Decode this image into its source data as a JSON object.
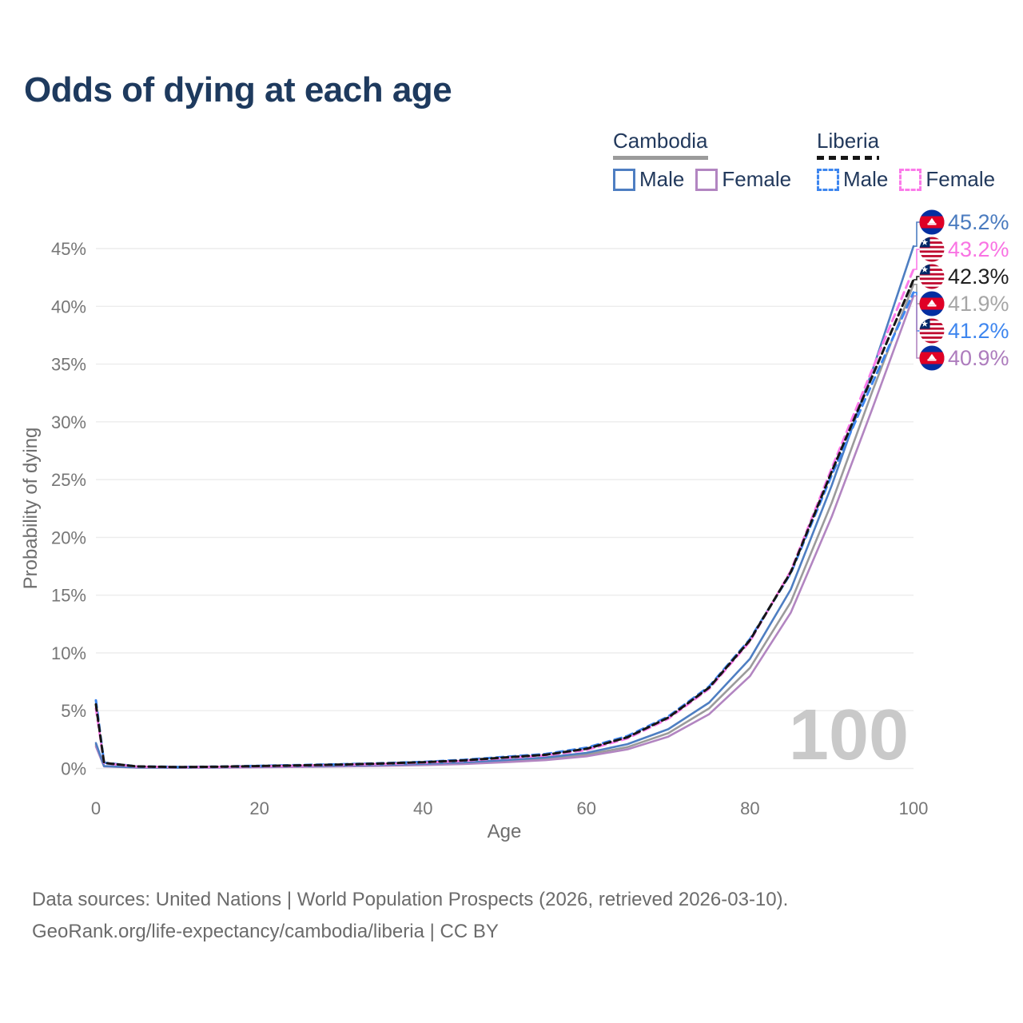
{
  "title": "Odds of dying at each age",
  "watermark": "100",
  "legend": {
    "groups": [
      {
        "country": "Cambodia",
        "underline_series": "cambodia-both",
        "items": [
          {
            "label": "Male",
            "series": "cambodia-male"
          },
          {
            "label": "Female",
            "series": "cambodia-female"
          }
        ]
      },
      {
        "country": "Liberia",
        "underline_series": "liberia-both",
        "items": [
          {
            "label": "Male",
            "series": "liberia-male"
          },
          {
            "label": "Female",
            "series": "liberia-female"
          }
        ]
      }
    ]
  },
  "footer": {
    "line1": "Data sources: United Nations | World Population Prospects (2026, retrieved 2026-03-10).",
    "line2": "GeoRank.org/life-expectancy/cambodia/liberia | CC BY"
  },
  "chart_data": {
    "type": "line",
    "title": "Odds of dying at each age",
    "xlabel": "Age",
    "ylabel": "Probability of dying",
    "x_ticks": [
      0,
      20,
      40,
      60,
      80,
      100
    ],
    "y_ticks_percent": [
      0,
      5,
      10,
      15,
      20,
      25,
      30,
      35,
      40,
      45
    ],
    "xlim": [
      0,
      100
    ],
    "ylim_percent": [
      0,
      47
    ],
    "grid": "horizontal",
    "legend_position": "top-right",
    "x": [
      0,
      1,
      5,
      10,
      15,
      20,
      25,
      30,
      35,
      40,
      45,
      50,
      55,
      60,
      65,
      70,
      75,
      80,
      85,
      90,
      95,
      100
    ],
    "series": [
      {
        "key": "cambodia-both",
        "country": "Cambodia",
        "sex": "Both sexes",
        "line_style": "solid",
        "color": "#9b9b9b",
        "label_color": "#a6a6a6",
        "flag": "cambodia",
        "end_label": "41.9%",
        "values": [
          2.05,
          0.19,
          0.08,
          0.065,
          0.09,
          0.13,
          0.17,
          0.21,
          0.27,
          0.35,
          0.46,
          0.63,
          0.82,
          1.2,
          1.85,
          3.05,
          5.2,
          8.7,
          14.4,
          23.0,
          32.7,
          41.9
        ]
      },
      {
        "key": "cambodia-female",
        "country": "Cambodia",
        "sex": "Female",
        "line_style": "solid",
        "color": "#b285c1",
        "label_color": "#ad7cbd",
        "flag": "cambodia",
        "end_label": "40.9%",
        "values": [
          1.9,
          0.17,
          0.07,
          0.06,
          0.07,
          0.1,
          0.13,
          0.17,
          0.22,
          0.29,
          0.39,
          0.54,
          0.72,
          1.05,
          1.65,
          2.75,
          4.7,
          8.0,
          13.5,
          21.8,
          31.2,
          40.9
        ]
      },
      {
        "key": "cambodia-male",
        "country": "Cambodia",
        "sex": "Male",
        "line_style": "solid",
        "color": "#4e7ec2",
        "label_color": "#4a7bbf",
        "flag": "cambodia",
        "end_label": "45.2%",
        "values": [
          2.2,
          0.2,
          0.09,
          0.07,
          0.1,
          0.16,
          0.2,
          0.25,
          0.31,
          0.4,
          0.53,
          0.72,
          0.95,
          1.35,
          2.1,
          3.4,
          5.7,
          9.5,
          15.5,
          24.5,
          34.5,
          45.2
        ]
      },
      {
        "key": "liberia-male",
        "country": "Liberia",
        "sex": "Male",
        "line_style": "dashed",
        "color": "#3e86ef",
        "label_color": "#3e86ef",
        "flag": "liberia",
        "end_label": "41.2%",
        "values": [
          5.9,
          0.5,
          0.18,
          0.13,
          0.16,
          0.23,
          0.3,
          0.37,
          0.46,
          0.57,
          0.75,
          1.0,
          1.25,
          1.8,
          2.8,
          4.5,
          7.1,
          11.2,
          16.9,
          25.4,
          33.4,
          41.2
        ]
      },
      {
        "key": "liberia-female",
        "country": "Liberia",
        "sex": "Female",
        "line_style": "dashed",
        "color": "#fb7ae9",
        "label_color": "#f973e3",
        "flag": "liberia",
        "end_label": "43.2%",
        "values": [
          5.2,
          0.45,
          0.16,
          0.11,
          0.13,
          0.18,
          0.24,
          0.31,
          0.39,
          0.5,
          0.66,
          0.9,
          1.12,
          1.6,
          2.6,
          4.3,
          6.9,
          11.0,
          17.1,
          26.0,
          34.6,
          43.2
        ]
      },
      {
        "key": "liberia-both",
        "country": "Liberia",
        "sex": "Both sexes",
        "line_style": "dashed",
        "color": "#161616",
        "label_color": "#1f1f1f",
        "flag": "liberia",
        "end_label": "42.3%",
        "values": [
          5.55,
          0.48,
          0.17,
          0.12,
          0.15,
          0.21,
          0.27,
          0.34,
          0.43,
          0.54,
          0.7,
          0.95,
          1.18,
          1.7,
          2.7,
          4.4,
          7.0,
          11.1,
          17.0,
          25.7,
          34.0,
          42.3
        ]
      }
    ]
  }
}
